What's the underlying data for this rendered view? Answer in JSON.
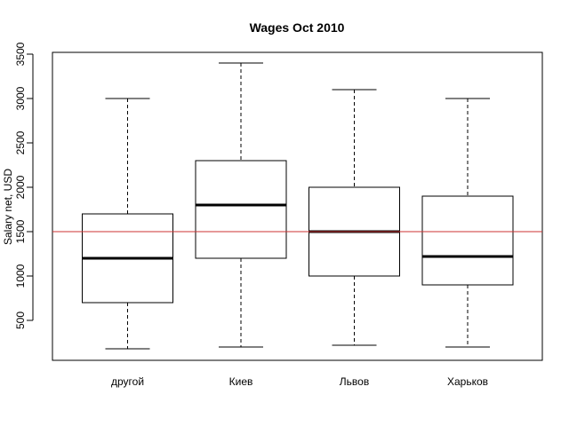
{
  "chart_data": {
    "type": "boxplot",
    "title": "Wages Oct 2010",
    "xlabel": "",
    "ylabel": "Salary net, USD",
    "categories": [
      "другой",
      "Киев",
      "Львов",
      "Харьков"
    ],
    "boxes": [
      {
        "category": "другой",
        "whisker_low": 180,
        "q1": 700,
        "median": 1200,
        "q3": 1700,
        "whisker_high": 3000
      },
      {
        "category": "Киев",
        "whisker_low": 200,
        "q1": 1200,
        "median": 1800,
        "q3": 2300,
        "whisker_high": 3400
      },
      {
        "category": "Львов",
        "whisker_low": 220,
        "q1": 1000,
        "median": 1500,
        "q3": 2000,
        "whisker_high": 3100
      },
      {
        "category": "Харьков",
        "whisker_low": 200,
        "q1": 900,
        "median": 1220,
        "q3": 1900,
        "whisker_high": 3000
      }
    ],
    "reference_line": {
      "y": 1500,
      "color": "#cc3333"
    },
    "ylim": [
      50,
      3500
    ],
    "yticks": [
      500,
      1000,
      1500,
      2000,
      2500,
      3000,
      3500
    ],
    "grid": false,
    "colors": {
      "box": "#ffffff",
      "stroke": "#000000"
    }
  }
}
